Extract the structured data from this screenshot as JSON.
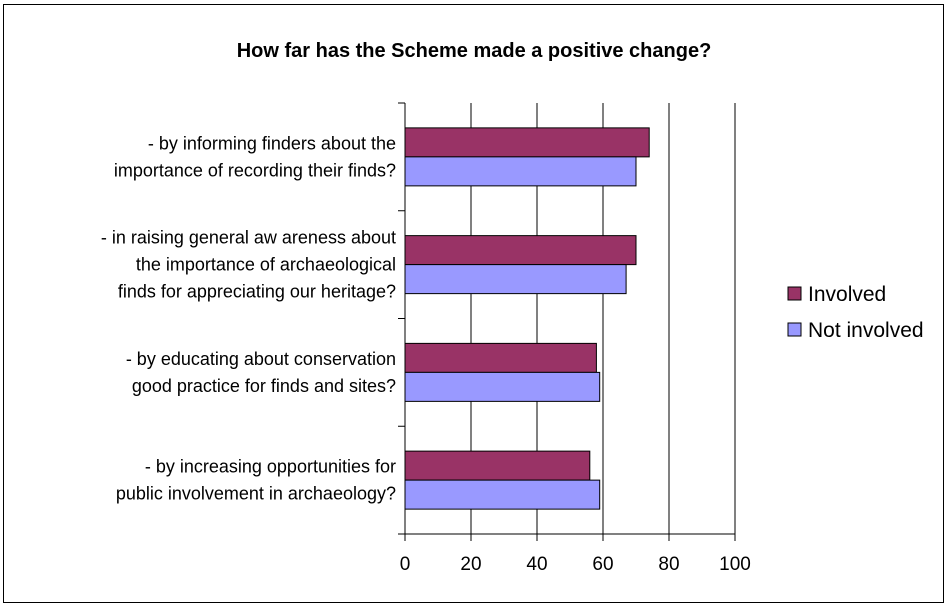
{
  "chart_data": {
    "type": "bar",
    "orientation": "horizontal",
    "title": "How far has the Scheme made a positive change?",
    "categories": [
      [
        "- by informing finders about the",
        "importance of recording their finds?"
      ],
      [
        "- in raising general aw areness about",
        "the importance of archaeological",
        "finds for appreciating our heritage?"
      ],
      [
        "- by educating about conservation",
        "good practice for finds and sites?"
      ],
      [
        "- by increasing opportunities for",
        "public involvement in archaeology?"
      ]
    ],
    "series": [
      {
        "name": "Involved",
        "color": "#993366",
        "values": [
          74,
          70,
          58,
          56
        ]
      },
      {
        "name": "Not involved",
        "color": "#9999ff",
        "values": [
          70,
          67,
          59,
          59
        ]
      }
    ],
    "xlim": [
      0,
      100
    ],
    "xticks": [
      "0",
      "20",
      "40",
      "60",
      "80",
      "100"
    ],
    "grid": "vertical",
    "legend": "right"
  }
}
